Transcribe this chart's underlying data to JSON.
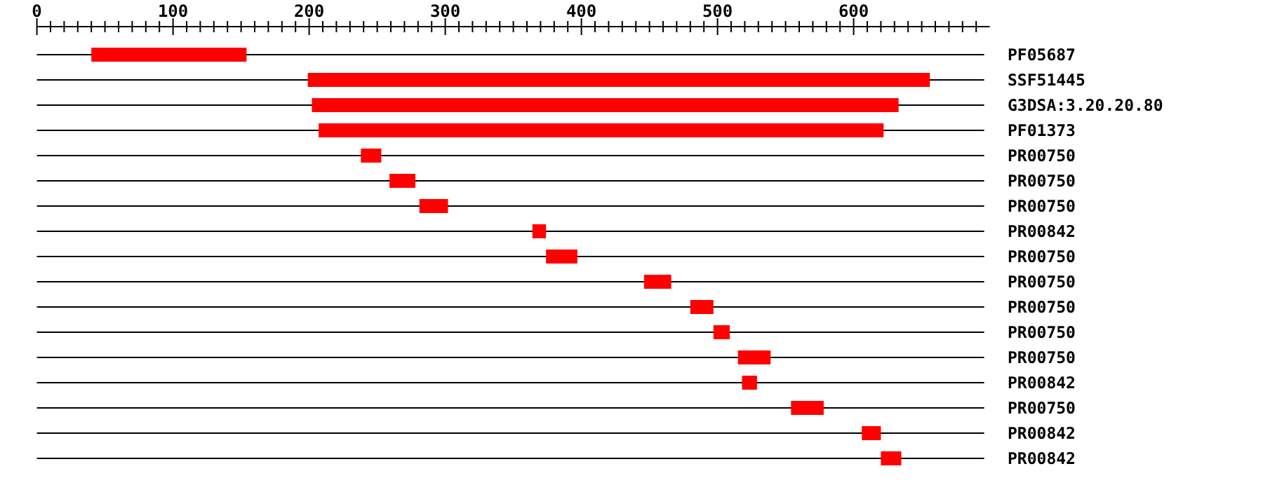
{
  "chart_data": {
    "type": "bar",
    "orientation": "horizontal",
    "categories": [
      "PF05687",
      "SSF51445",
      "G3DSA:3.20.20.80",
      "PF01373",
      "PR00750",
      "PR00750",
      "PR00750",
      "PR00842",
      "PR00750",
      "PR00750",
      "PR00750",
      "PR00750",
      "PR00750",
      "PR00842",
      "PR00750",
      "PR00842",
      "PR00842"
    ],
    "base": [
      40,
      199,
      202,
      207,
      238,
      259,
      281,
      364,
      374,
      446,
      480,
      497,
      515,
      518,
      554,
      606,
      620
    ],
    "values": [
      114,
      457,
      431,
      415,
      15,
      19,
      21,
      10,
      23,
      20,
      17,
      12,
      24,
      11,
      24,
      14,
      15
    ],
    "color": "#ff0000",
    "xlim": [
      0,
      700
    ],
    "xticks": [
      0,
      {
        "value": 10,
        "label": null
      },
      {
        "value": 20,
        "label": null
      },
      {
        "value": 30,
        "label": null
      },
      {
        "value": 40,
        "label": null
      },
      {
        "value": 50,
        "label": null
      },
      {
        "value": 60,
        "label": null
      },
      {
        "value": 70,
        "label": null
      },
      {
        "value": 80,
        "label": null
      },
      {
        "value": 90,
        "label": null
      },
      100,
      {
        "value": 110,
        "label": null
      },
      {
        "value": 120,
        "label": null
      },
      {
        "value": 130,
        "label": null
      },
      {
        "value": 140,
        "label": null
      },
      {
        "value": 150,
        "label": null
      },
      {
        "value": 160,
        "label": null
      },
      {
        "value": 170,
        "label": null
      },
      {
        "value": 180,
        "label": null
      },
      {
        "value": 190,
        "label": null
      },
      200,
      {
        "value": 210,
        "label": null
      },
      {
        "value": 220,
        "label": null
      },
      {
        "value": 230,
        "label": null
      },
      {
        "value": 240,
        "label": null
      },
      {
        "value": 250,
        "label": null
      },
      {
        "value": 260,
        "label": null
      },
      {
        "value": 270,
        "label": null
      },
      {
        "value": 280,
        "label": null
      },
      {
        "value": 290,
        "label": null
      },
      300,
      {
        "value": 310,
        "label": null
      },
      {
        "value": 320,
        "label": null
      },
      {
        "value": 330,
        "label": null
      },
      {
        "value": 340,
        "label": null
      },
      {
        "value": 350,
        "label": null
      },
      {
        "value": 360,
        "label": null
      },
      {
        "value": 370,
        "label": null
      },
      {
        "value": 380,
        "label": null
      },
      {
        "value": 390,
        "label": null
      },
      400,
      {
        "value": 410,
        "label": null
      },
      {
        "value": 420,
        "label": null
      },
      {
        "value": 430,
        "label": null
      },
      {
        "value": 440,
        "label": null
      },
      {
        "value": 450,
        "label": null
      },
      {
        "value": 460,
        "label": null
      },
      {
        "value": 470,
        "label": null
      },
      {
        "value": 480,
        "label": null
      },
      {
        "value": 490,
        "label": null
      },
      500,
      {
        "value": 510,
        "label": null
      },
      {
        "value": 520,
        "label": null
      },
      {
        "value": 530,
        "label": null
      },
      {
        "value": 540,
        "label": null
      },
      {
        "value": 550,
        "label": null
      },
      {
        "value": 560,
        "label": null
      },
      {
        "value": 570,
        "label": null
      },
      {
        "value": 580,
        "label": null
      },
      {
        "value": 590,
        "label": null
      },
      600,
      {
        "value": 610,
        "label": null
      },
      {
        "value": 620,
        "label": null
      },
      {
        "value": 630,
        "label": null
      },
      {
        "value": 640,
        "label": null
      },
      {
        "value": 650,
        "label": null
      },
      {
        "value": 660,
        "label": null
      },
      {
        "value": 670,
        "label": null
      },
      {
        "value": 680,
        "label": null
      },
      {
        "value": 690,
        "label": null
      }
    ],
    "grid": "y"
  }
}
